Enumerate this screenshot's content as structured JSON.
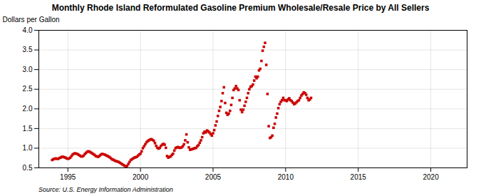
{
  "chart_data": {
    "type": "scatter",
    "title": "Monthly Rhode Island Reformulated Gasoline Premium Wholesale/Resale Price by All Sellers",
    "ylabel": "Dollars per Gallon",
    "source": "Source: U.S. Energy Information Administration",
    "color": "#cc0000",
    "marker": "square",
    "grid": true,
    "xlim": [
      1993.0,
      2022.5
    ],
    "ylim": [
      0.5,
      4.0
    ],
    "xticks": [
      1995,
      2000,
      2005,
      2010,
      2015,
      2020
    ],
    "yticks": [
      0.5,
      {
        "value": 1.0,
        "label": "1.0"
      },
      1.5,
      {
        "value": 2.0,
        "label": "2.0"
      },
      2.5,
      {
        "value": 3.0,
        "label": "3.0"
      },
      3.5,
      {
        "value": 4.0,
        "label": "4.0"
      }
    ],
    "x": [
      1993.917,
      1994.0,
      1994.083,
      1994.167,
      1994.25,
      1994.333,
      1994.417,
      1994.5,
      1994.583,
      1994.667,
      1994.75,
      1994.833,
      1994.917,
      1995.0,
      1995.083,
      1995.167,
      1995.25,
      1995.333,
      1995.417,
      1995.5,
      1995.583,
      1995.667,
      1995.75,
      1995.833,
      1995.917,
      1996.0,
      1996.083,
      1996.167,
      1996.25,
      1996.333,
      1996.417,
      1996.5,
      1996.583,
      1996.667,
      1996.75,
      1996.833,
      1996.917,
      1997.0,
      1997.083,
      1997.167,
      1997.25,
      1997.333,
      1997.417,
      1997.5,
      1997.583,
      1997.667,
      1997.75,
      1997.833,
      1997.917,
      1998.0,
      1998.083,
      1998.167,
      1998.25,
      1998.333,
      1998.417,
      1998.5,
      1998.583,
      1998.667,
      1998.75,
      1998.833,
      1998.917,
      1999.0,
      1999.083,
      1999.167,
      1999.25,
      1999.333,
      1999.417,
      1999.5,
      1999.583,
      1999.667,
      1999.75,
      1999.833,
      1999.917,
      2000.0,
      2000.083,
      2000.167,
      2000.25,
      2000.333,
      2000.417,
      2000.5,
      2000.583,
      2000.667,
      2000.75,
      2000.833,
      2000.917,
      2001.0,
      2001.083,
      2001.167,
      2001.25,
      2001.333,
      2001.417,
      2001.5,
      2001.583,
      2001.667,
      2001.75,
      2001.833,
      2001.917,
      2002.0,
      2002.083,
      2002.167,
      2002.25,
      2002.333,
      2002.417,
      2002.5,
      2002.583,
      2002.667,
      2002.75,
      2002.833,
      2002.917,
      2003.0,
      2003.083,
      2003.167,
      2003.25,
      2003.333,
      2003.417,
      2003.5,
      2003.583,
      2003.667,
      2003.75,
      2003.833,
      2003.917,
      2004.0,
      2004.083,
      2004.167,
      2004.25,
      2004.333,
      2004.417,
      2004.5,
      2004.583,
      2004.667,
      2004.75,
      2004.833,
      2004.917,
      2005.0,
      2005.083,
      2005.167,
      2005.25,
      2005.333,
      2005.417,
      2005.5,
      2005.583,
      2005.667,
      2005.75,
      2005.833,
      2005.917,
      2006.0,
      2006.083,
      2006.167,
      2006.25,
      2006.333,
      2006.417,
      2006.5,
      2006.583,
      2006.667,
      2006.75,
      2006.833,
      2006.917,
      2007.0,
      2007.083,
      2007.167,
      2007.25,
      2007.333,
      2007.417,
      2007.5,
      2007.583,
      2007.667,
      2007.75,
      2007.833,
      2007.917,
      2008.0,
      2008.083,
      2008.167,
      2008.25,
      2008.333,
      2008.417,
      2008.5,
      2008.583,
      2008.667,
      2008.75,
      2008.833,
      2008.917,
      2009.0,
      2009.083,
      2009.167,
      2009.25,
      2009.333,
      2009.417,
      2009.5,
      2009.583,
      2009.667,
      2009.75,
      2009.833,
      2009.917,
      2010.0,
      2010.083,
      2010.167,
      2010.25,
      2010.333,
      2010.417,
      2010.5,
      2010.583,
      2010.667,
      2010.75,
      2010.833,
      2010.917,
      2011.0,
      2011.083,
      2011.167,
      2011.25,
      2011.333,
      2011.417,
      2011.5,
      2011.583,
      2011.667,
      2011.75
    ],
    "values": [
      0.7,
      0.72,
      0.73,
      0.74,
      0.73,
      0.73,
      0.75,
      0.76,
      0.78,
      0.78,
      0.77,
      0.76,
      0.74,
      0.73,
      0.74,
      0.76,
      0.8,
      0.84,
      0.86,
      0.87,
      0.86,
      0.85,
      0.83,
      0.81,
      0.79,
      0.79,
      0.81,
      0.85,
      0.88,
      0.91,
      0.92,
      0.91,
      0.89,
      0.87,
      0.85,
      0.83,
      0.8,
      0.79,
      0.78,
      0.8,
      0.83,
      0.85,
      0.85,
      0.84,
      0.83,
      0.81,
      0.8,
      0.78,
      0.76,
      0.73,
      0.71,
      0.7,
      0.68,
      0.67,
      0.66,
      0.65,
      0.63,
      0.61,
      0.59,
      0.57,
      0.55,
      0.53,
      0.55,
      0.6,
      0.65,
      0.7,
      0.72,
      0.74,
      0.76,
      0.77,
      0.78,
      0.81,
      0.84,
      0.86,
      0.92,
      1.0,
      1.05,
      1.1,
      1.15,
      1.18,
      1.2,
      1.22,
      1.23,
      1.21,
      1.19,
      1.13,
      1.06,
      1.01,
      0.99,
      1.01,
      1.06,
      1.09,
      1.11,
      1.09,
      1.01,
      0.8,
      0.76,
      0.78,
      0.79,
      0.83,
      0.86,
      0.94,
      1.0,
      1.02,
      1.03,
      1.01,
      1.01,
      1.02,
      1.05,
      1.1,
      1.2,
      1.35,
      1.15,
      1.02,
      0.96,
      0.97,
      0.98,
      0.99,
      1.0,
      1.01,
      1.05,
      1.08,
      1.14,
      1.2,
      1.28,
      1.38,
      1.42,
      1.4,
      1.45,
      1.43,
      1.4,
      1.36,
      1.32,
      1.38,
      1.46,
      1.58,
      1.68,
      1.82,
      1.95,
      2.05,
      2.2,
      2.4,
      2.55,
      2.15,
      1.9,
      1.85,
      1.88,
      1.95,
      2.1,
      2.28,
      2.48,
      2.52,
      2.58,
      2.52,
      2.48,
      2.22,
      1.98,
      1.92,
      1.98,
      2.08,
      2.18,
      2.28,
      2.4,
      2.5,
      2.56,
      2.58,
      2.62,
      2.72,
      2.82,
      2.78,
      2.82,
      2.98,
      3.02,
      3.22,
      3.48,
      3.58,
      3.68,
      3.12,
      2.38,
      1.56,
      1.26,
      1.28,
      1.32,
      1.52,
      1.62,
      1.78,
      1.88,
      2.02,
      2.12,
      2.18,
      2.22,
      2.28,
      2.22,
      2.22,
      2.2,
      2.24,
      2.27,
      2.22,
      2.2,
      2.16,
      2.12,
      2.14,
      2.17,
      2.2,
      2.22,
      2.28,
      2.34,
      2.38,
      2.42,
      2.4,
      2.36,
      2.28,
      2.22,
      2.24,
      2.28
    ]
  }
}
